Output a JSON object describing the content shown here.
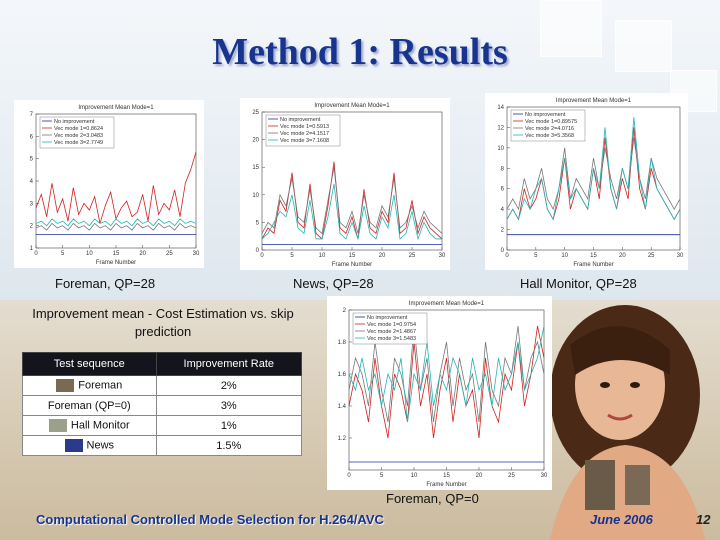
{
  "slide": {
    "title": "Method 1: Results",
    "footer": "Computational Controlled Mode Selection for H.264/AVC",
    "date": "June 2006",
    "page_number": "12"
  },
  "captions": {
    "plot1": "Foreman, QP=28",
    "plot2": "News, QP=28",
    "plot3": "Hall Monitor, QP=28",
    "plot4": "Foreman, QP=0"
  },
  "table": {
    "title": "Improvement mean - Cost Estimation vs. skip prediction",
    "headers": [
      "Test sequence",
      "Improvement Rate"
    ],
    "rows": [
      [
        "Foreman",
        "2%"
      ],
      [
        "Foreman (QP=0)",
        "3%"
      ],
      [
        "Hall Monitor",
        "1%"
      ],
      [
        "News",
        "1.5%"
      ]
    ]
  },
  "colors": {
    "title": "#17348f",
    "series": [
      "#1f2fa0",
      "#d21f1f",
      "#777777",
      "#22b6b6"
    ]
  },
  "chart_data": [
    {
      "type": "line",
      "title": "Improvement Mean Mode=1",
      "xlabel": "Frame Number",
      "xlim": [
        0,
        30
      ],
      "ylim": [
        1,
        7
      ],
      "x": [
        0,
        1,
        2,
        3,
        4,
        5,
        6,
        7,
        8,
        9,
        10,
        11,
        12,
        13,
        14,
        15,
        16,
        17,
        18,
        19,
        20,
        21,
        22,
        23,
        24,
        25,
        26,
        27,
        28,
        29,
        30
      ],
      "series": [
        {
          "name": "No improvement",
          "values": [
            1.6,
            1.6,
            1.6,
            1.6,
            1.6,
            1.6,
            1.6,
            1.6,
            1.6,
            1.6,
            1.6,
            1.6,
            1.6,
            1.6,
            1.6,
            1.6,
            1.6,
            1.6,
            1.6,
            1.6,
            1.6,
            1.6,
            1.6,
            1.6,
            1.6,
            1.6,
            1.6,
            1.6,
            1.6,
            1.6,
            1.6
          ]
        },
        {
          "name": "Vec mode 1=0.8624",
          "values": [
            2.8,
            3.4,
            2.4,
            3.9,
            2.6,
            3.2,
            2.2,
            3.7,
            2.5,
            3.0,
            2.7,
            3.3,
            2.1,
            2.9,
            3.5,
            2.3,
            2.8,
            3.1,
            2.4,
            2.6,
            3.4,
            2.2,
            3.8,
            2.5,
            3.0,
            2.7,
            3.6,
            2.4,
            3.9,
            4.5,
            5.3
          ]
        },
        {
          "name": "Vec mode 2=3.0483",
          "values": [
            1.9,
            2.0,
            1.8,
            2.1,
            1.9,
            2.0,
            1.8,
            2.1,
            1.9,
            2.0,
            1.8,
            2.1,
            1.9,
            2.0,
            1.8,
            2.1,
            1.9,
            2.0,
            1.8,
            2.1,
            1.9,
            2.0,
            1.8,
            2.1,
            1.9,
            2.0,
            1.8,
            2.1,
            1.9,
            2.0,
            1.9
          ]
        },
        {
          "name": "Vec mode 3=2.7749",
          "values": [
            2.1,
            2.2,
            2.0,
            2.3,
            2.1,
            2.2,
            2.0,
            2.3,
            2.1,
            2.2,
            2.0,
            2.3,
            2.1,
            2.2,
            2.0,
            2.3,
            2.1,
            2.2,
            2.0,
            2.3,
            2.1,
            2.2,
            2.0,
            2.3,
            2.1,
            2.2,
            2.0,
            2.3,
            2.1,
            2.2,
            2.1
          ]
        }
      ],
      "y_ticks": [
        1,
        2,
        3,
        4,
        5,
        6,
        7
      ],
      "x_ticks": [
        0,
        5,
        10,
        15,
        20,
        25,
        30
      ]
    },
    {
      "type": "line",
      "title": "Improvement Mean Mode=1",
      "xlabel": "Frame Number",
      "xlim": [
        0,
        30
      ],
      "ylim": [
        0,
        25
      ],
      "x": [
        0,
        1,
        2,
        3,
        4,
        5,
        6,
        7,
        8,
        9,
        10,
        11,
        12,
        13,
        14,
        15,
        16,
        17,
        18,
        19,
        20,
        21,
        22,
        23,
        24,
        25,
        26,
        27,
        28,
        29,
        30
      ],
      "series": [
        {
          "name": "No improvement",
          "values": [
            1,
            1,
            1,
            1,
            1,
            1,
            1,
            1,
            1,
            1,
            1,
            1,
            1,
            1,
            1,
            1,
            1,
            1,
            1,
            1,
            1,
            1,
            1,
            1,
            1,
            1,
            1,
            1,
            1,
            1,
            1
          ]
        },
        {
          "name": "Vec mode 1=0.5913",
          "values": [
            2,
            4,
            3,
            9,
            7,
            14,
            5,
            4,
            12,
            3,
            2,
            8,
            16,
            4,
            3,
            6,
            2,
            11,
            4,
            3,
            7,
            5,
            14,
            3,
            4,
            9,
            3,
            6,
            4,
            3,
            2
          ]
        },
        {
          "name": "Vec mode 2=4.1517",
          "values": [
            3,
            5,
            4,
            10,
            8,
            13,
            6,
            5,
            11,
            4,
            3,
            9,
            15,
            5,
            4,
            7,
            3,
            10,
            5,
            4,
            8,
            6,
            13,
            4,
            5,
            8,
            4,
            7,
            5,
            4,
            3
          ]
        },
        {
          "name": "Vec mode 3=7.1608",
          "values": [
            2,
            3,
            5,
            7,
            6,
            10,
            4,
            3,
            9,
            2,
            2,
            6,
            12,
            3,
            2,
            5,
            2,
            8,
            3,
            2,
            6,
            4,
            10,
            2,
            3,
            7,
            2,
            5,
            3,
            2,
            2
          ]
        }
      ],
      "y_ticks": [
        0,
        5,
        10,
        15,
        20,
        25
      ],
      "x_ticks": [
        0,
        5,
        10,
        15,
        20,
        25,
        30
      ]
    },
    {
      "type": "line",
      "title": "Improvement Mean Mode=1",
      "xlabel": "Frame Number",
      "xlim": [
        0,
        30
      ],
      "ylim": [
        0,
        14
      ],
      "x": [
        0,
        1,
        2,
        3,
        4,
        5,
        6,
        7,
        8,
        9,
        10,
        11,
        12,
        13,
        14,
        15,
        16,
        17,
        18,
        19,
        20,
        21,
        22,
        23,
        24,
        25,
        26,
        27,
        28,
        29,
        30
      ],
      "series": [
        {
          "name": "No improvement",
          "values": [
            1.5,
            1.5,
            1.5,
            1.5,
            1.5,
            1.5,
            1.5,
            1.5,
            1.5,
            1.5,
            1.5,
            1.5,
            1.5,
            1.5,
            1.5,
            1.5,
            1.5,
            1.5,
            1.5,
            1.5,
            1.5,
            1.5,
            1.5,
            1.5,
            1.5,
            1.5,
            1.5,
            1.5,
            1.5,
            1.5,
            1.5
          ]
        },
        {
          "name": "Vec mode 1=0.89575",
          "values": [
            3,
            4,
            3,
            6,
            4,
            5,
            7,
            4,
            3,
            5,
            9,
            4,
            6,
            5,
            4,
            8,
            5,
            11,
            6,
            4,
            7,
            5,
            12,
            6,
            4,
            8,
            6,
            5,
            4,
            3,
            4
          ]
        },
        {
          "name": "Vec mode 2=4.0716",
          "values": [
            4,
            5,
            4,
            7,
            5,
            6,
            8,
            5,
            4,
            6,
            10,
            5,
            7,
            6,
            5,
            9,
            6,
            10,
            7,
            5,
            8,
            6,
            11,
            7,
            5,
            9,
            7,
            6,
            5,
            4,
            5
          ]
        },
        {
          "name": "Vec mode 3=5.3568",
          "values": [
            3,
            4,
            3,
            5,
            4,
            6,
            7,
            4,
            3,
            6,
            9,
            5,
            6,
            5,
            4,
            8,
            6,
            12,
            6,
            4,
            8,
            6,
            13,
            7,
            4,
            9,
            6,
            5,
            4,
            3,
            4
          ]
        }
      ],
      "y_ticks": [
        0,
        2,
        4,
        6,
        8,
        10,
        12,
        14
      ],
      "x_ticks": [
        0,
        5,
        10,
        15,
        20,
        25,
        30
      ]
    },
    {
      "type": "line",
      "title": "Improvement Mean Mode=1",
      "xlabel": "Frame Number",
      "xlim": [
        0,
        30
      ],
      "ylim": [
        1,
        2
      ],
      "x": [
        0,
        1,
        2,
        3,
        4,
        5,
        6,
        7,
        8,
        9,
        10,
        11,
        12,
        13,
        14,
        15,
        16,
        17,
        18,
        19,
        20,
        21,
        22,
        23,
        24,
        25,
        26,
        27,
        28,
        29,
        30
      ],
      "series": [
        {
          "name": "No improvement",
          "values": [
            1.05,
            1.05,
            1.05,
            1.05,
            1.05,
            1.05,
            1.05,
            1.05,
            1.05,
            1.05,
            1.05,
            1.05,
            1.05,
            1.05,
            1.05,
            1.05,
            1.05,
            1.05,
            1.05,
            1.05,
            1.05,
            1.05,
            1.05,
            1.05,
            1.05,
            1.05,
            1.05,
            1.05,
            1.05,
            1.05,
            1.05
          ]
        },
        {
          "name": "Vec mode 1=0.9754",
          "values": [
            1.4,
            1.6,
            1.5,
            1.3,
            1.7,
            1.4,
            1.2,
            1.6,
            1.5,
            1.3,
            1.8,
            1.4,
            1.6,
            1.2,
            1.5,
            1.7,
            1.3,
            1.6,
            1.4,
            1.5,
            1.2,
            1.7,
            1.4,
            1.3,
            1.6,
            1.5,
            1.8,
            1.4,
            1.6,
            1.9,
            1.7
          ]
        },
        {
          "name": "Vec mode 2=1.4867",
          "values": [
            1.5,
            1.7,
            1.6,
            1.4,
            1.8,
            1.5,
            1.3,
            1.7,
            1.6,
            1.4,
            1.9,
            1.5,
            1.7,
            1.3,
            1.6,
            1.8,
            1.4,
            1.7,
            1.5,
            1.6,
            1.3,
            1.8,
            1.5,
            1.4,
            1.7,
            1.6,
            1.9,
            1.5,
            1.7,
            1.8,
            1.6
          ]
        },
        {
          "name": "Vec mode 3=1.5483",
          "values": [
            1.6,
            1.5,
            1.7,
            1.5,
            1.6,
            1.4,
            1.6,
            1.5,
            1.7,
            1.3,
            1.6,
            1.5,
            1.8,
            1.4,
            1.6,
            1.5,
            1.7,
            1.6,
            1.4,
            1.7,
            1.5,
            1.6,
            1.4,
            1.7,
            1.5,
            1.6,
            1.8,
            1.5,
            1.6,
            1.7,
            1.9
          ]
        }
      ],
      "y_ticks": [
        1.2,
        1.4,
        1.6,
        1.8,
        2
      ],
      "x_ticks": [
        0,
        5,
        10,
        15,
        20,
        25,
        30
      ]
    }
  ]
}
